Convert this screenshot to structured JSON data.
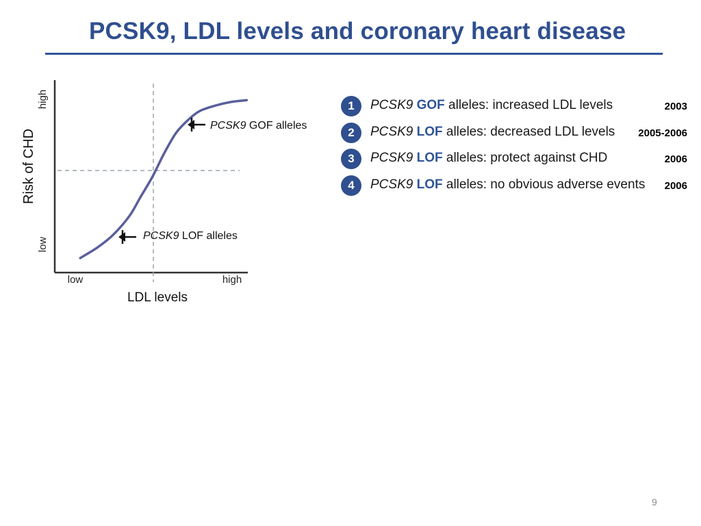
{
  "slide": {
    "title": "PCSK9, LDL levels and coronary heart disease",
    "page_number": "9"
  },
  "chart_data": {
    "type": "line",
    "xlabel": "LDL levels",
    "ylabel": "Risk of CHD",
    "x_ticks": [
      "low",
      "high"
    ],
    "y_ticks": [
      "low",
      "high"
    ],
    "xlim": [
      0,
      1
    ],
    "ylim": [
      0,
      1
    ],
    "grid": false,
    "reference_lines": {
      "x": 0.5,
      "y": 0.52
    },
    "series": [
      {
        "x": [
          0.13,
          0.22,
          0.3,
          0.38,
          0.44,
          0.5,
          0.56,
          0.62,
          0.68,
          0.74,
          0.82,
          0.9,
          0.98
        ],
        "y": [
          0.08,
          0.14,
          0.21,
          0.31,
          0.42,
          0.53,
          0.66,
          0.77,
          0.84,
          0.89,
          0.92,
          0.94,
          0.95
        ]
      }
    ],
    "annotations": [
      {
        "gene": "PCSK9",
        "label": "GOF alleles",
        "points_to": "upper curve"
      },
      {
        "gene": "PCSK9",
        "label": "LOF alleles",
        "points_to": "lower curve"
      }
    ],
    "colors": {
      "curve": "#5A5F9C",
      "axis": "#333333",
      "dashed": "#9aa3ad"
    }
  },
  "findings": [
    {
      "number": "1",
      "gene": "PCSK9",
      "allele": "GOF",
      "text": "alleles: increased LDL levels",
      "year": "2003"
    },
    {
      "number": "2",
      "gene": "PCSK9",
      "allele": "LOF",
      "text": "alleles: decreased LDL levels",
      "year": "2005-2006"
    },
    {
      "number": "3",
      "gene": "PCSK9",
      "allele": "LOF",
      "text": "alleles: protect against CHD",
      "year": "2006"
    },
    {
      "number": "4",
      "gene": "PCSK9",
      "allele": "LOF",
      "text": "alleles: no obvious adverse events",
      "year": "2006"
    }
  ],
  "theme": {
    "title_color": "#2F4F8F",
    "badge_color": "#2F4F8F",
    "keyword_color": "#2F5597"
  }
}
